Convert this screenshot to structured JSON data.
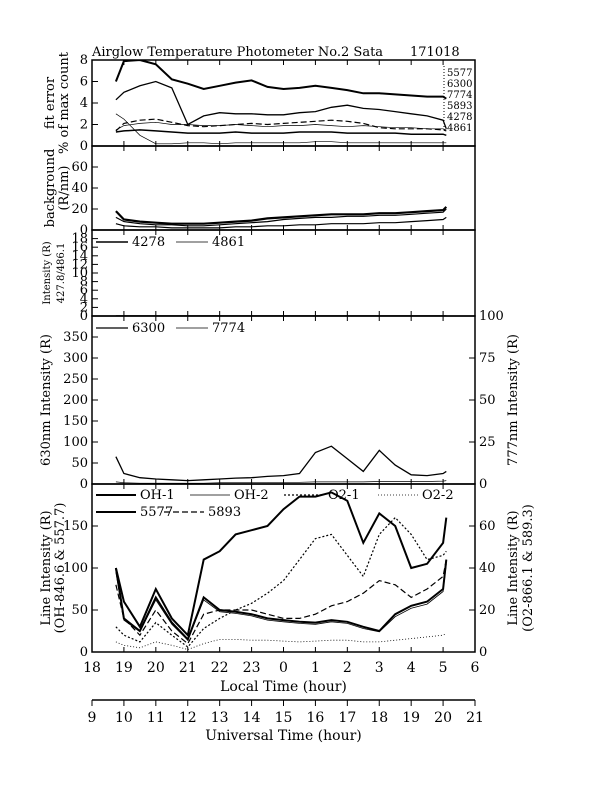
{
  "title": "Airglow Temperature Photometer No.2  Sata",
  "date_code": "171018",
  "x_local": {
    "label": "Local Time (hour)",
    "ticks": [
      "18",
      "19",
      "20",
      "21",
      "22",
      "23",
      "0",
      "1",
      "2",
      "3",
      "4",
      "5",
      "6"
    ]
  },
  "x_ut": {
    "label": "Universal Time (hour)",
    "ticks": [
      "9",
      "10",
      "11",
      "12",
      "13",
      "14",
      "15",
      "16",
      "17",
      "18",
      "19",
      "20",
      "21"
    ]
  },
  "chart_data": [
    {
      "id": "fit_error",
      "type": "line",
      "ylabel": "fit error",
      "ylabel2": "% of max count",
      "ylim": [
        0,
        8
      ],
      "yticks": [
        "0",
        "2",
        "4",
        "6",
        "8"
      ],
      "legend": [
        "5577",
        "6300",
        "7774",
        "5893",
        "4278",
        "4861"
      ],
      "x": [
        18.75,
        19.0,
        19.5,
        20.0,
        20.5,
        21.0,
        21.5,
        22.0,
        22.5,
        23.0,
        23.5,
        24.0,
        24.5,
        25.0,
        25.5,
        26.0,
        26.5,
        27.0,
        27.5,
        28.0,
        28.5,
        29.0,
        29.1
      ],
      "series": [
        {
          "name": "5577",
          "values": [
            6.0,
            7.9,
            8.0,
            7.6,
            6.2,
            5.8,
            5.3,
            5.6,
            5.9,
            6.1,
            5.5,
            5.3,
            5.4,
            5.6,
            5.4,
            5.2,
            4.9,
            4.9,
            4.8,
            4.7,
            4.6,
            4.6,
            4.4
          ]
        },
        {
          "name": "6300",
          "values": [
            4.3,
            5.0,
            5.6,
            6.0,
            5.4,
            2.0,
            2.8,
            3.1,
            3.0,
            3.0,
            2.9,
            2.9,
            3.1,
            3.2,
            3.6,
            3.8,
            3.5,
            3.4,
            3.2,
            3.0,
            2.8,
            2.4,
            1.6
          ]
        },
        {
          "name": "7774",
          "values": [
            1.5,
            1.9,
            2.1,
            2.2,
            2.0,
            2.0,
            1.9,
            1.9,
            2.0,
            1.9,
            1.8,
            1.9,
            1.9,
            2.0,
            1.9,
            1.8,
            1.9,
            1.8,
            1.7,
            1.7,
            1.6,
            1.6,
            1.5
          ]
        },
        {
          "name": "5893",
          "values": [
            1.4,
            2.1,
            2.4,
            2.5,
            2.2,
            1.9,
            1.8,
            1.9,
            2.0,
            2.1,
            2.0,
            2.1,
            2.2,
            2.3,
            2.4,
            2.3,
            2.1,
            1.7,
            1.6,
            1.6,
            1.6,
            1.5,
            1.4
          ]
        },
        {
          "name": "4278",
          "values": [
            1.3,
            1.4,
            1.5,
            1.4,
            1.3,
            1.2,
            1.2,
            1.2,
            1.3,
            1.2,
            1.2,
            1.2,
            1.3,
            1.3,
            1.3,
            1.2,
            1.2,
            1.2,
            1.2,
            1.1,
            1.1,
            1.1,
            1.0
          ]
        },
        {
          "name": "4861",
          "values": [
            3.0,
            2.5,
            1.0,
            0.2,
            0.2,
            0.3,
            0.3,
            0.2,
            0.3,
            0.3,
            0.3,
            0.3,
            0.3,
            0.4,
            0.4,
            0.3,
            0.3,
            0.3,
            0.3,
            0.3,
            0.3,
            0.3,
            0.3
          ]
        }
      ]
    },
    {
      "id": "background",
      "type": "line",
      "ylabel": "background",
      "ylabel2": "(R/nm)",
      "ylim": [
        0,
        80
      ],
      "yticks": [
        "0",
        "20",
        "40",
        "60"
      ],
      "x": [
        18.75,
        19.0,
        19.5,
        20.0,
        20.5,
        21.0,
        21.5,
        22.0,
        22.5,
        23.0,
        23.5,
        24.0,
        24.5,
        25.0,
        25.5,
        26.0,
        26.5,
        27.0,
        27.5,
        28.0,
        28.5,
        29.0,
        29.1
      ],
      "series": [
        {
          "name": "",
          "values": [
            18,
            10,
            8,
            7,
            6,
            6,
            6,
            7,
            8,
            9,
            11,
            12,
            13,
            14,
            15,
            15,
            15,
            16,
            16,
            17,
            18,
            19,
            22
          ]
        },
        {
          "name": "",
          "values": [
            12,
            8,
            6,
            5,
            5,
            4,
            4,
            5,
            6,
            7,
            8,
            10,
            11,
            12,
            12,
            13,
            13,
            14,
            14,
            15,
            16,
            17,
            20
          ]
        },
        {
          "name": "",
          "values": [
            6,
            4,
            3,
            3,
            2,
            2,
            2,
            2,
            3,
            3,
            4,
            4,
            5,
            5,
            6,
            6,
            6,
            7,
            7,
            8,
            9,
            10,
            12
          ]
        }
      ]
    },
    {
      "id": "intensity_427_486",
      "type": "line",
      "ylabel": "Intensity (R)",
      "ylabel2": "427.8/486.1",
      "ylim": [
        0,
        20
      ],
      "yticks": [
        "0",
        "2",
        "4",
        "6",
        "8",
        "10",
        "12",
        "14",
        "16",
        "18"
      ],
      "legend": [
        "4278",
        "4861"
      ],
      "x": [
        18.75,
        19.5,
        20.5,
        21.5,
        22.5,
        23.5,
        24.5,
        25.5,
        26.5,
        27.5,
        28.5,
        29.1
      ],
      "series": [
        {
          "name": "4278",
          "values": [
            0.0,
            0.0,
            0.0,
            0.0,
            0.0,
            0.0,
            0.0,
            0.0,
            0.0,
            0.0,
            0.0,
            0.0
          ]
        },
        {
          "name": "4861",
          "values": [
            0.0,
            0.0,
            0.0,
            0.0,
            0.0,
            0.0,
            0.0,
            0.0,
            0.0,
            0.0,
            0.0,
            0.0
          ]
        }
      ]
    },
    {
      "id": "intensity_630_777",
      "type": "line",
      "ylabel": "630nm Intensity (R)",
      "ylabel_right": "777nm Intensity (R)",
      "ylim": [
        0,
        400
      ],
      "ylim_right": [
        0,
        100
      ],
      "yticks": [
        "0",
        "50",
        "100",
        "150",
        "200",
        "250",
        "300",
        "350"
      ],
      "yticks_right": [
        "0",
        "25",
        "50",
        "75",
        "100"
      ],
      "legend": [
        "6300",
        "7774"
      ],
      "x": [
        18.75,
        19.0,
        19.5,
        20.0,
        20.5,
        21.0,
        21.5,
        22.0,
        22.5,
        23.0,
        23.5,
        24.0,
        24.5,
        25.0,
        25.5,
        26.0,
        26.5,
        27.0,
        27.5,
        28.0,
        28.5,
        29.0,
        29.1
      ],
      "series": [
        {
          "name": "6300",
          "values": [
            65,
            25,
            15,
            12,
            10,
            8,
            10,
            12,
            14,
            15,
            18,
            20,
            25,
            75,
            90,
            60,
            30,
            80,
            45,
            22,
            20,
            25,
            30
          ]
        },
        {
          "name": "7774",
          "values": [
            5,
            3,
            2,
            2,
            2,
            2,
            2,
            3,
            3,
            3,
            3,
            4,
            4,
            5,
            5,
            5,
            5,
            6,
            6,
            6,
            6,
            7,
            8
          ]
        }
      ]
    },
    {
      "id": "line_intensity",
      "type": "line",
      "ylabel": "Line Intensity (R)",
      "ylabel2": "(OH-846.6 & 557.7)",
      "ylabel_right": "Line Intensity (R)",
      "ylabel_right2": "(O2-866.1 & 589.3)",
      "ylim": [
        0,
        200
      ],
      "ylim_right": [
        0,
        80
      ],
      "yticks": [
        "0",
        "50",
        "100",
        "150"
      ],
      "yticks_right": [
        "0",
        "20",
        "40",
        "60"
      ],
      "legend": [
        "OH-1",
        "OH-2",
        "O2-1",
        "O2-2",
        "5577",
        "5893"
      ],
      "x": [
        18.75,
        19.0,
        19.5,
        20.0,
        20.5,
        21.0,
        21.5,
        22.0,
        22.5,
        23.0,
        23.5,
        24.0,
        24.5,
        25.0,
        25.5,
        26.0,
        26.5,
        27.0,
        27.5,
        28.0,
        28.5,
        29.0,
        29.1
      ],
      "series": [
        {
          "name": "OH-1",
          "values": [
            100,
            40,
            25,
            65,
            35,
            15,
            65,
            50,
            48,
            45,
            40,
            38,
            36,
            35,
            38,
            36,
            30,
            25,
            45,
            55,
            60,
            75,
            110
          ]
        },
        {
          "name": "OH-2",
          "values": [
            95,
            38,
            24,
            62,
            33,
            14,
            62,
            48,
            46,
            43,
            38,
            36,
            34,
            33,
            36,
            34,
            28,
            24,
            42,
            52,
            57,
            72,
            105
          ]
        },
        {
          "name": "O2-1",
          "values": [
            30,
            20,
            12,
            35,
            20,
            6,
            28,
            40,
            50,
            58,
            70,
            85,
            110,
            135,
            140,
            115,
            90,
            140,
            160,
            140,
            110,
            115,
            120
          ]
        },
        {
          "name": "O2-2",
          "values": [
            12,
            8,
            5,
            12,
            8,
            3,
            10,
            15,
            15,
            14,
            14,
            13,
            12,
            13,
            14,
            14,
            12,
            12,
            14,
            16,
            18,
            20,
            22
          ]
        },
        {
          "name": "5577",
          "values": [
            100,
            60,
            30,
            75,
            40,
            20,
            110,
            120,
            140,
            145,
            150,
            170,
            185,
            185,
            190,
            180,
            130,
            165,
            150,
            100,
            105,
            130,
            160
          ]
        },
        {
          "name": "5893",
          "values": [
            80,
            40,
            20,
            50,
            25,
            10,
            45,
            50,
            50,
            50,
            45,
            40,
            40,
            45,
            55,
            60,
            70,
            85,
            80,
            65,
            75,
            90,
            110
          ]
        }
      ]
    }
  ]
}
